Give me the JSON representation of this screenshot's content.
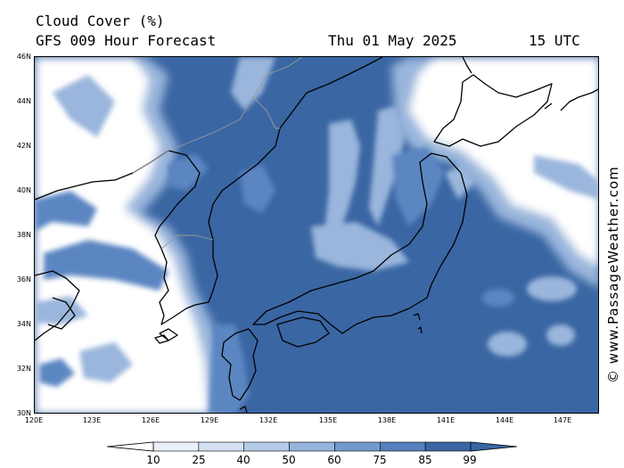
{
  "header": {
    "title": "Cloud Cover (%)",
    "subtitle": "GFS 009 Hour Forecast",
    "date": "Thu 01 May 2025",
    "time": "15 UTC"
  },
  "map": {
    "lat_labels": [
      "46N",
      "44N",
      "42N",
      "40N",
      "38N",
      "36N",
      "34N",
      "32N",
      "30N"
    ],
    "lon_labels": [
      "120E",
      "123E",
      "126E",
      "129E",
      "132E",
      "135E",
      "138E",
      "141E",
      "144E",
      "147E"
    ],
    "colors": {
      "deep": "#3a66a3",
      "mid": "#5b86c2",
      "light": "#9ab6dc",
      "pale": "#ccdcf0",
      "clear": "#ffffff",
      "coast": "#000000",
      "border": "#9a9a9a"
    }
  },
  "credit": "© www.PassageWeather.com",
  "legend": {
    "labels": [
      "10",
      "25",
      "40",
      "50",
      "60",
      "75",
      "85",
      "99"
    ],
    "colors": [
      "#ffffff",
      "#eaf0f9",
      "#d2e0f1",
      "#b5cbe8",
      "#96b4dc",
      "#7499cd",
      "#5580bd",
      "#3a66a3",
      "#3a66a3"
    ]
  }
}
